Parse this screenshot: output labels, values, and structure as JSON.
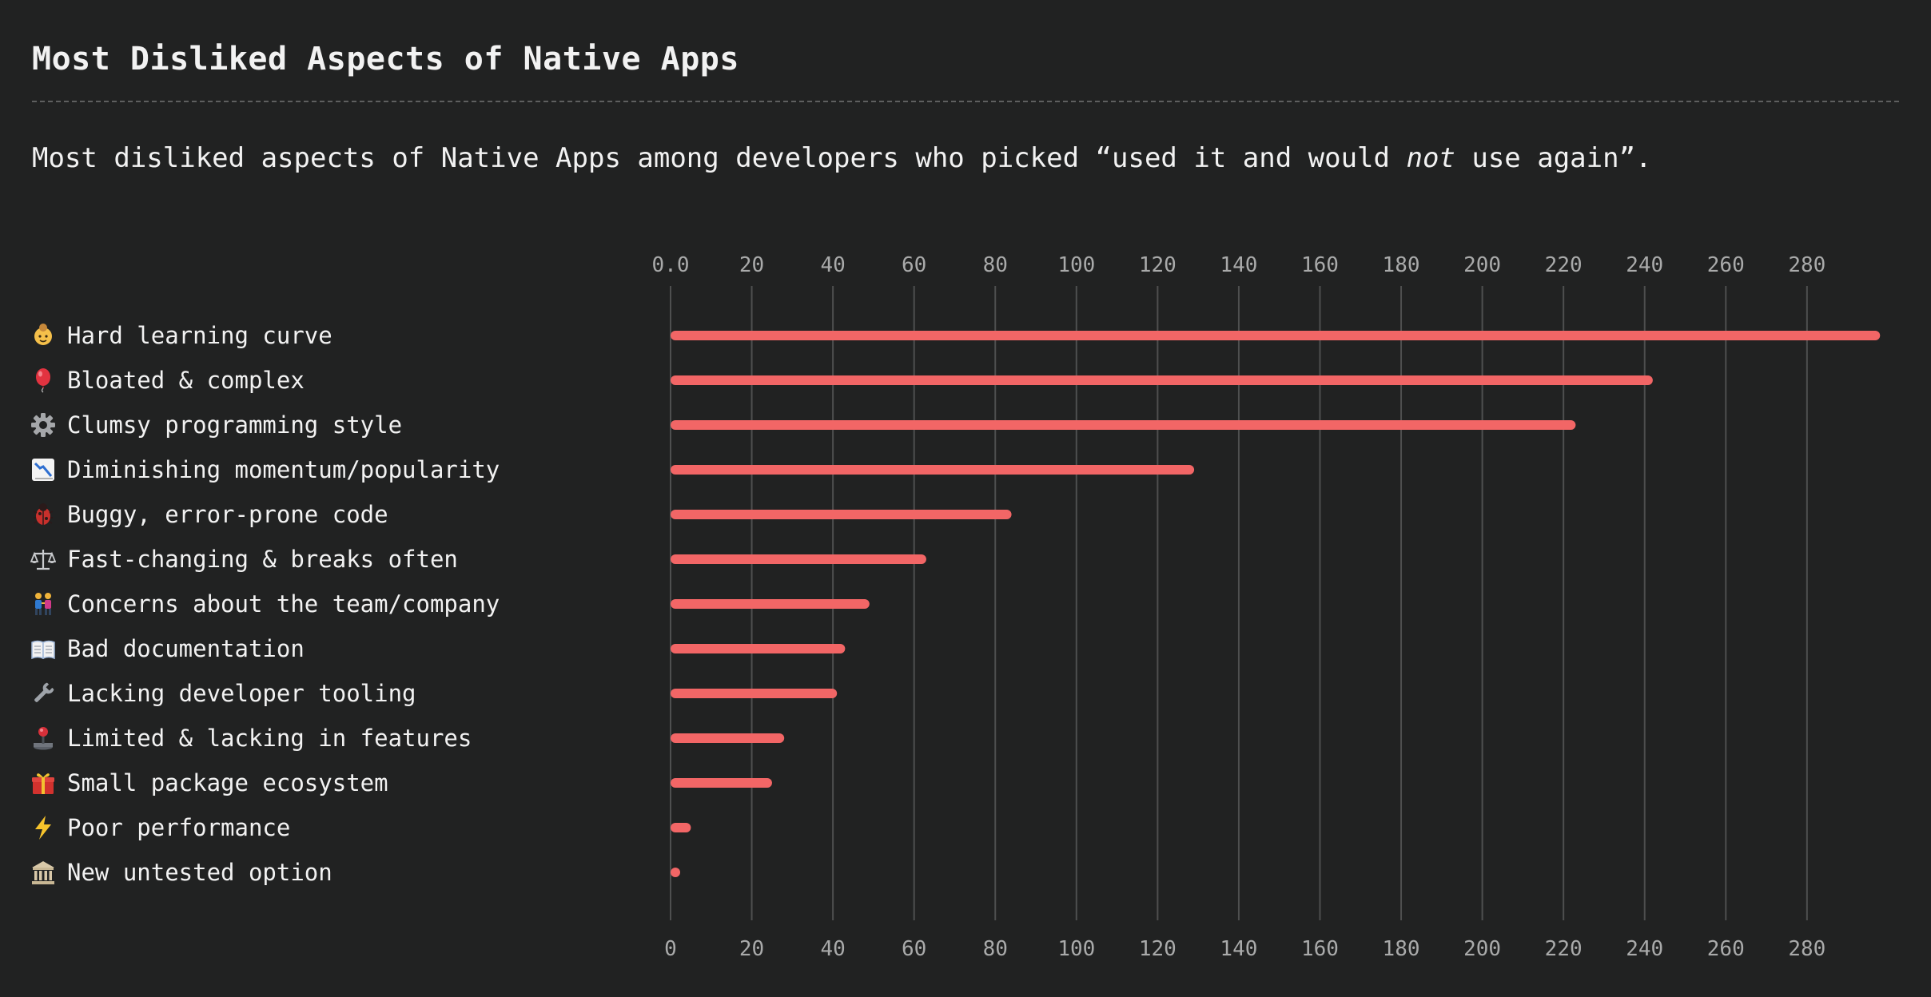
{
  "header": {
    "title": "Most Disliked Aspects of Native Apps",
    "subtitle_before": "Most disliked aspects of Native Apps among developers who picked “used it and would ",
    "subtitle_emphasis": "not",
    "subtitle_after": " use again”."
  },
  "colors": {
    "background": "#212222",
    "bar": "#f26666",
    "grid": "#4e4f4f",
    "tick": "#a9aaaa",
    "text": "#f2f2f2"
  },
  "chart_data": {
    "type": "bar",
    "orientation": "horizontal",
    "categories": [
      "Hard learning curve",
      "Bloated & complex",
      "Clumsy programming style",
      "Diminishing momentum/popularity",
      "Buggy, error-prone code",
      "Fast-changing & breaks often",
      "Concerns about the team/company",
      "Bad documentation",
      "Lacking developer tooling",
      "Limited & lacking in features",
      "Small package ecosystem",
      "Poor performance",
      "New untested option"
    ],
    "icons": [
      "baby-icon",
      "balloon-icon",
      "gear-icon",
      "chart-decreasing-icon",
      "bug-icon",
      "scales-icon",
      "people-icon",
      "book-icon",
      "wrench-icon",
      "joystick-icon",
      "gift-icon",
      "lightning-icon",
      "classical-building-icon"
    ],
    "values": [
      298,
      242,
      223,
      129,
      84,
      63,
      49,
      43,
      41,
      28,
      25,
      5,
      1
    ],
    "xlim": [
      0,
      298
    ],
    "top_ticks": [
      "0.0",
      "20",
      "40",
      "60",
      "80",
      "100",
      "120",
      "140",
      "160",
      "180",
      "200",
      "220",
      "240",
      "260",
      "280"
    ],
    "bottom_ticks": [
      "0",
      "20",
      "40",
      "60",
      "80",
      "100",
      "120",
      "140",
      "160",
      "180",
      "200",
      "220",
      "240",
      "260",
      "280"
    ],
    "tick_values": [
      0,
      20,
      40,
      60,
      80,
      100,
      120,
      140,
      160,
      180,
      200,
      220,
      240,
      260,
      280
    ],
    "grid": true,
    "legend": "none"
  }
}
